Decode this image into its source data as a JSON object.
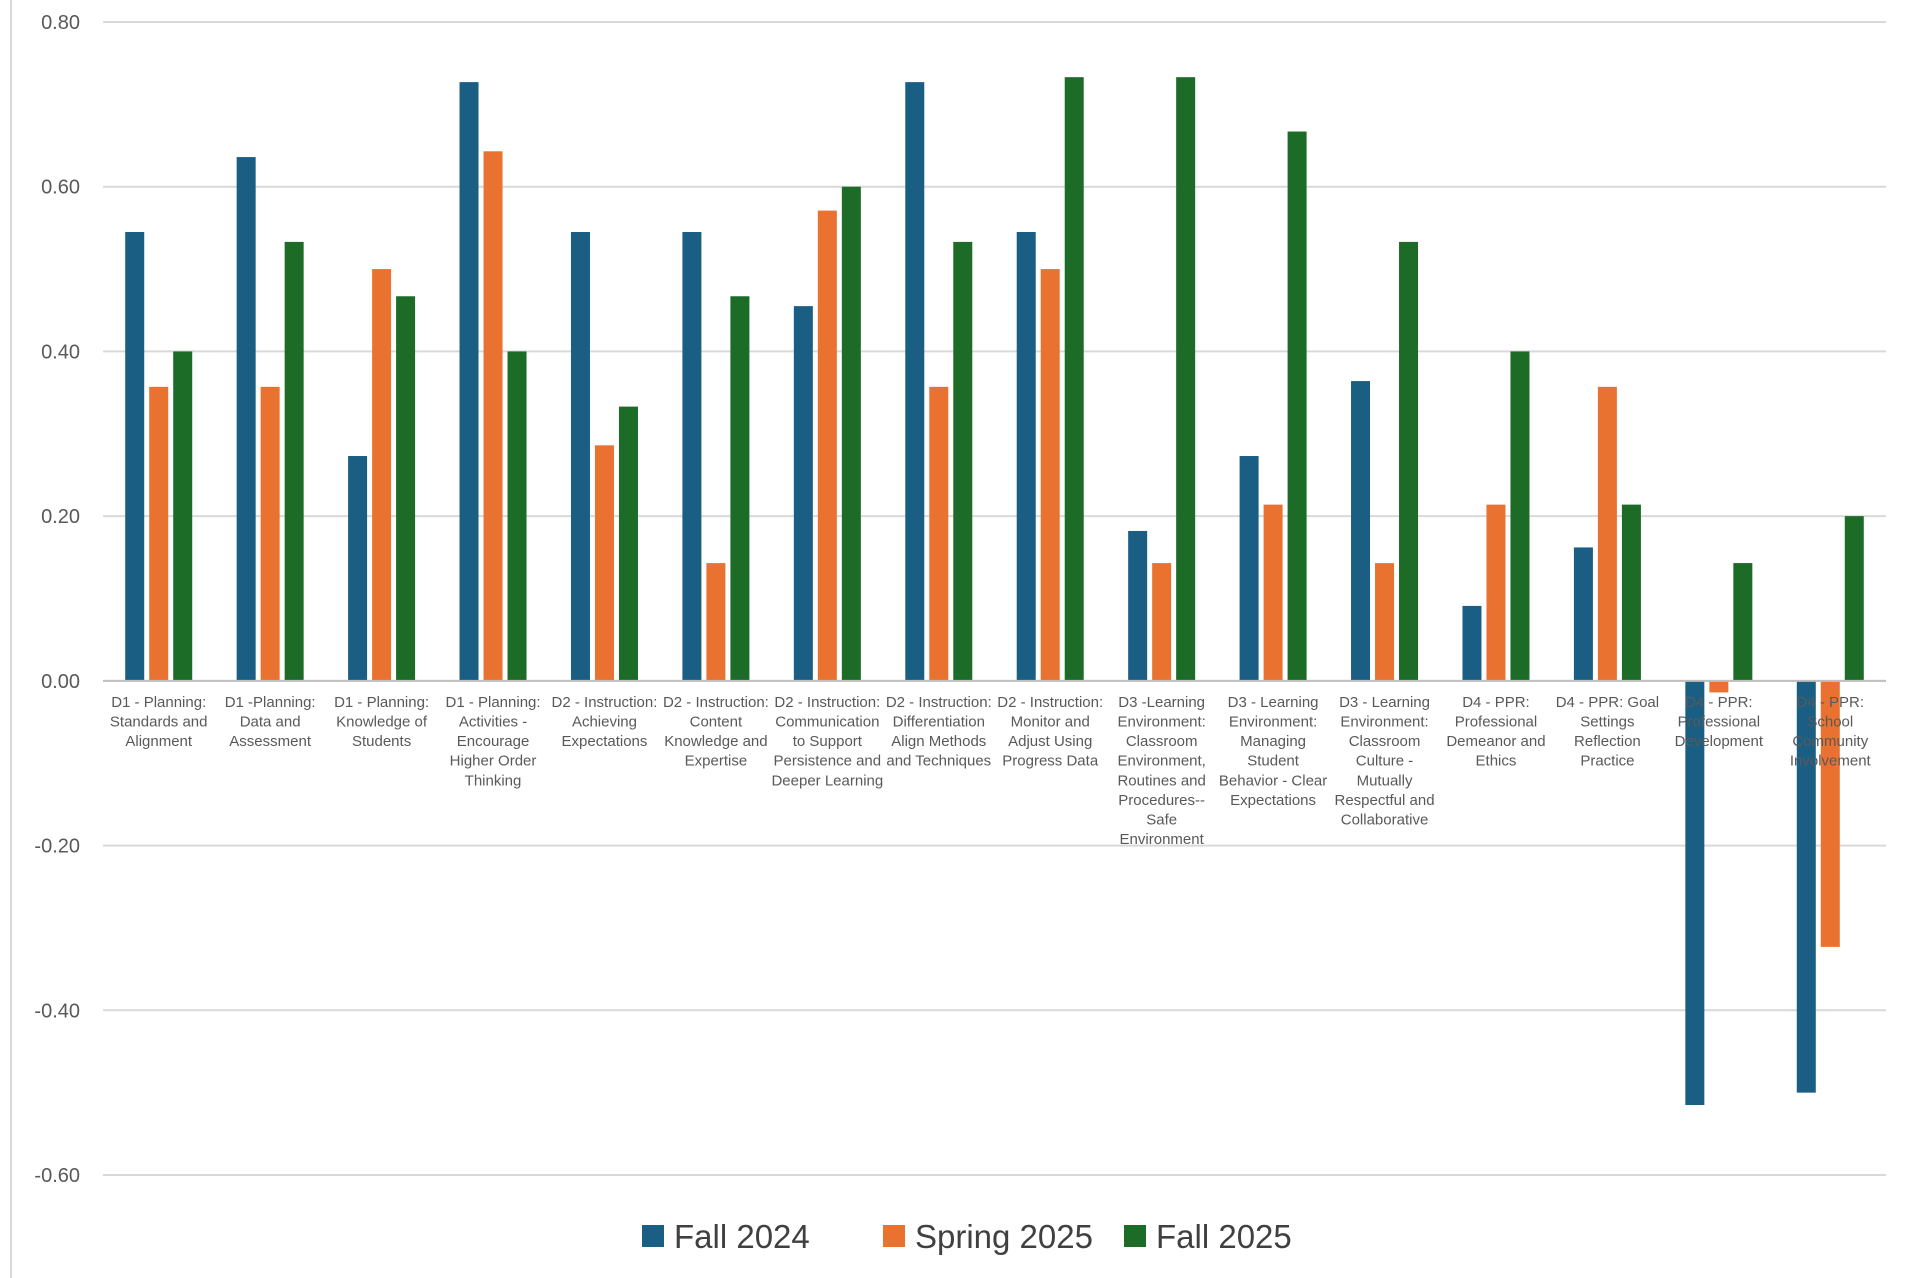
{
  "chart_data": {
    "type": "bar",
    "title": "",
    "xlabel": "",
    "ylabel": "",
    "ylim": [
      -0.6,
      0.8
    ],
    "yticks": [
      "0.80",
      "0.60",
      "0.40",
      "0.20",
      "0.00",
      "-0.20",
      "-0.40",
      "-0.60"
    ],
    "grid": true,
    "legend_position": "bottom",
    "categories": [
      [
        "D1 - Planning:",
        "Standards and",
        "Alignment"
      ],
      [
        "D1 -Planning:",
        "Data and",
        "Assessment"
      ],
      [
        "D1 - Planning:",
        "Knowledge of",
        "Students"
      ],
      [
        "D1 - Planning:",
        "Activities -",
        "Encourage",
        "Higher Order",
        "Thinking"
      ],
      [
        "D2 - Instruction:",
        "Achieving",
        "Expectations"
      ],
      [
        "D2 - Instruction:",
        "Content",
        "Knowledge and",
        "Expertise"
      ],
      [
        "D2 - Instruction:",
        "Communication",
        "to Support",
        "Persistence and",
        "Deeper Learning"
      ],
      [
        "D2 - Instruction:",
        "Differentiation",
        "Align Methods",
        "and Techniques"
      ],
      [
        "D2 - Instruction:",
        "Monitor and",
        "Adjust Using",
        "Progress Data"
      ],
      [
        "D3 -Learning",
        "Environment:",
        "Classroom",
        "Environment,",
        "Routines and",
        "Procedures--",
        "Safe",
        "Environment"
      ],
      [
        "D3 - Learning",
        "Environment:",
        "Managing",
        "Student",
        "Behavior - Clear",
        "Expectations"
      ],
      [
        "D3 - Learning",
        "Environment:",
        "Classroom",
        "Culture -",
        "Mutually",
        "Respectful and",
        "Collaborative"
      ],
      [
        "D4 - PPR:",
        "Professional",
        "Demeanor and",
        "Ethics"
      ],
      [
        "D4 - PPR: Goal",
        "Settings",
        "Reflection",
        "Practice"
      ],
      [
        "D4 - PPR:",
        "Professional",
        "Development"
      ],
      [
        "D4 - PPR:",
        "School",
        "Community",
        "Involvement"
      ]
    ],
    "series": [
      {
        "name": "Fall 2024",
        "color": "#1a5e84",
        "values": [
          0.545,
          0.636,
          0.273,
          0.727,
          0.545,
          0.545,
          0.455,
          0.727,
          0.545,
          0.182,
          0.273,
          0.364,
          0.091,
          0.162,
          -0.515,
          -0.5
        ]
      },
      {
        "name": "Spring 2025",
        "color": "#ea7231",
        "values": [
          0.357,
          0.357,
          0.5,
          0.643,
          0.286,
          0.143,
          0.571,
          0.357,
          0.5,
          0.143,
          0.214,
          0.143,
          0.214,
          0.357,
          -0.014,
          -0.323
        ]
      },
      {
        "name": "Fall 2025",
        "color": "#1c6b27",
        "values": [
          0.4,
          0.533,
          0.467,
          0.4,
          0.333,
          0.467,
          0.6,
          0.533,
          0.733,
          0.733,
          0.667,
          0.533,
          0.4,
          0.214,
          0.143,
          0.2
        ]
      }
    ]
  }
}
